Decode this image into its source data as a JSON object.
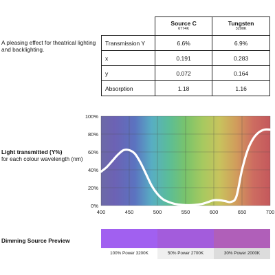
{
  "description": "A pleasing effect for theatrical lighting and backlighting.",
  "table": {
    "columns": [
      {
        "name": "Source C",
        "kelvin": "6774K"
      },
      {
        "name": "Tungsten",
        "kelvin": "3200K"
      }
    ],
    "rows": [
      {
        "label": "Transmission Y",
        "values": [
          "6.6%",
          "6.9%"
        ]
      },
      {
        "label": "x",
        "values": [
          "0.191",
          "0.283"
        ]
      },
      {
        "label": "y",
        "values": [
          "0.072",
          "0.164"
        ]
      },
      {
        "label": "Absorption",
        "values": [
          "1.18",
          "1.16"
        ]
      }
    ]
  },
  "chart_label": {
    "title": "Light transmitted (Y%)",
    "subtitle": "for each colour wavelength (nm)"
  },
  "chart_data": {
    "type": "line",
    "title": "",
    "xlabel": "",
    "ylabel": "",
    "xlim": [
      400,
      700
    ],
    "ylim": [
      0,
      100
    ],
    "xticks": [
      "400",
      "450",
      "500",
      "550",
      "600",
      "650",
      "700"
    ],
    "yticks": [
      "0%",
      "20%",
      "40%",
      "60%",
      "80%",
      "100%"
    ],
    "grid": true,
    "line_color": "#ffffff",
    "series": [
      {
        "x": [
          400,
          410,
          420,
          430,
          440,
          450,
          460,
          470,
          480,
          490,
          500,
          510,
          520,
          530,
          540,
          550,
          560,
          570,
          580,
          590,
          600,
          610,
          620,
          630,
          640,
          650,
          660,
          670,
          680,
          690,
          700
        ],
        "y": [
          38,
          43,
          50,
          57,
          62,
          62,
          58,
          48,
          35,
          22,
          13,
          7,
          4,
          2,
          1,
          0.5,
          0.5,
          1,
          2,
          4,
          6,
          6,
          5,
          4,
          10,
          40,
          62,
          75,
          82,
          85,
          85
        ]
      }
    ]
  },
  "preview": {
    "title": "Dimming Source Preview",
    "swatches": [
      {
        "label": "100% Power 3200K",
        "color": "#a160f0"
      },
      {
        "label": "50% Power 2700K",
        "color": "#a35cdc"
      },
      {
        "label": "30% Power 2000K",
        "color": "#b05fb9"
      }
    ]
  }
}
